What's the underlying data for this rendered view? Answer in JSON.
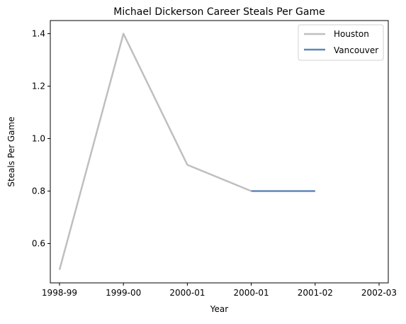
{
  "chart_data": {
    "type": "line",
    "title": "Michael Dickerson Career Steals Per Game",
    "xlabel": "Year",
    "ylabel": "Steals Per Game",
    "x_tick_labels": [
      "1998-99",
      "1999-00",
      "2000-01",
      "2000-01",
      "2001-02",
      "2002-03"
    ],
    "y_ticks": [
      0.6,
      0.8,
      1.0,
      1.2,
      1.4
    ],
    "ylim": [
      0.45,
      1.45
    ],
    "grid": false,
    "legend_position": "top-right",
    "series": [
      {
        "name": "Houston",
        "color": "#bfbfbf",
        "points": [
          {
            "x": 0,
            "y": 0.5
          },
          {
            "x": 1,
            "y": 1.4
          },
          {
            "x": 2,
            "y": 0.9
          },
          {
            "x": 3,
            "y": 0.8
          }
        ]
      },
      {
        "name": "Vancouver",
        "color": "#5f86b8",
        "points": [
          {
            "x": 3,
            "y": 0.8
          },
          {
            "x": 4,
            "y": 0.8
          }
        ]
      }
    ]
  }
}
